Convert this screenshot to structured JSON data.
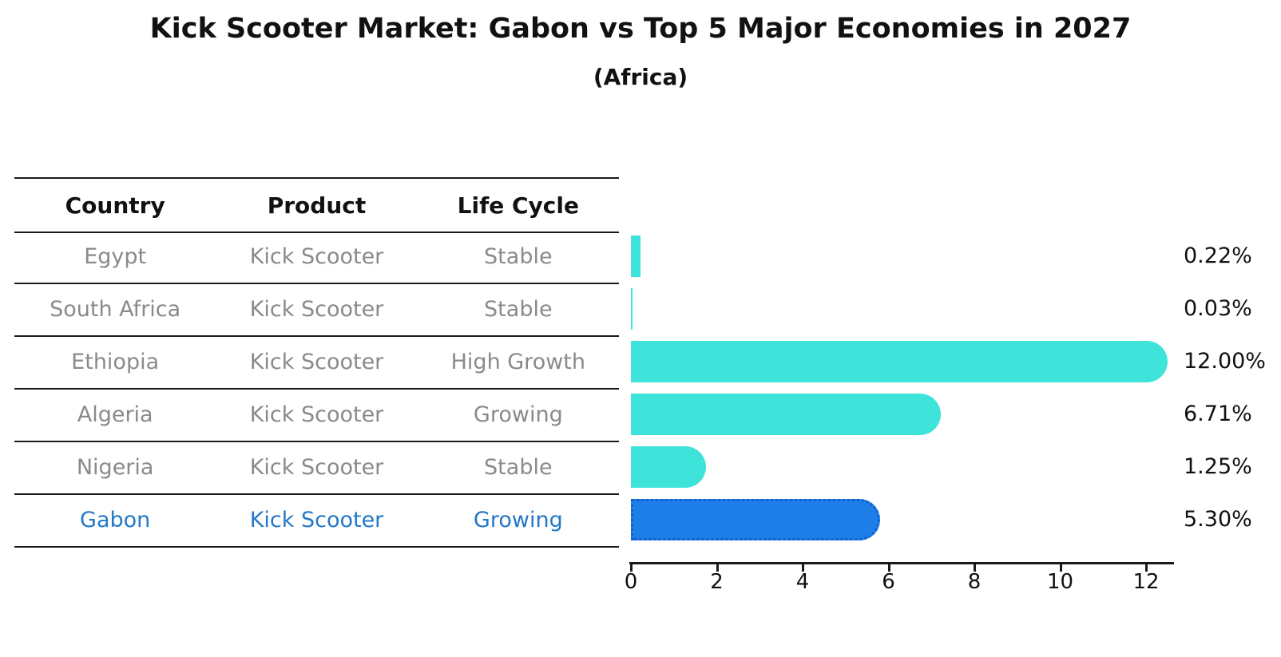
{
  "title": "Kick Scooter Market: Gabon vs Top 5 Major Economies in 2027",
  "subtitle": "(Africa)",
  "table": {
    "columns": [
      "Country",
      "Product",
      "Life Cycle"
    ],
    "rows": [
      {
        "country": "Egypt",
        "product": "Kick Scooter",
        "life_cycle": "Stable",
        "highlight": false
      },
      {
        "country": "South Africa",
        "product": "Kick Scooter",
        "life_cycle": "Stable",
        "highlight": false
      },
      {
        "country": "Ethiopia",
        "product": "Kick Scooter",
        "life_cycle": "High Growth",
        "highlight": false
      },
      {
        "country": "Algeria",
        "product": "Kick Scooter",
        "life_cycle": "Growing",
        "highlight": false
      },
      {
        "country": "Nigeria",
        "product": "Kick Scooter",
        "life_cycle": "Stable",
        "highlight": true
      }
    ],
    "highlight_row": {
      "country": "Gabon",
      "product": "Kick Scooter",
      "life_cycle": "Growing"
    }
  },
  "chart_data": {
    "type": "bar",
    "orientation": "horizontal",
    "title": "Kick Scooter Market: Gabon vs Top 5 Major Economies in 2027",
    "subtitle": "(Africa)",
    "categories": [
      "Egypt",
      "South Africa",
      "Ethiopia",
      "Algeria",
      "Nigeria",
      "Gabon"
    ],
    "values": [
      0.22,
      0.03,
      12.0,
      6.71,
      1.25,
      5.3
    ],
    "value_labels": [
      "0.22%",
      "0.03%",
      "12.00%",
      "6.71%",
      "1.25%",
      "5.30%"
    ],
    "xlabel": "",
    "ylabel": "",
    "xlim": [
      0,
      12.6
    ],
    "xticks": [
      0,
      2,
      4,
      6,
      8,
      10,
      12
    ],
    "grid": false,
    "legend": false,
    "bar_color": "#3EE4D9",
    "highlight_color": "#1E7EE8",
    "highlight_index": 5,
    "highlight_edge_style": "dotted"
  },
  "colors": {
    "row_text_gray": "#8a8a8a",
    "header_black": "#111111",
    "highlight_text_blue": "#2478C8",
    "bar_cyan": "#3EE4D9",
    "bar_blue": "#1E7EE8",
    "axis_black": "#1a1a1a"
  }
}
